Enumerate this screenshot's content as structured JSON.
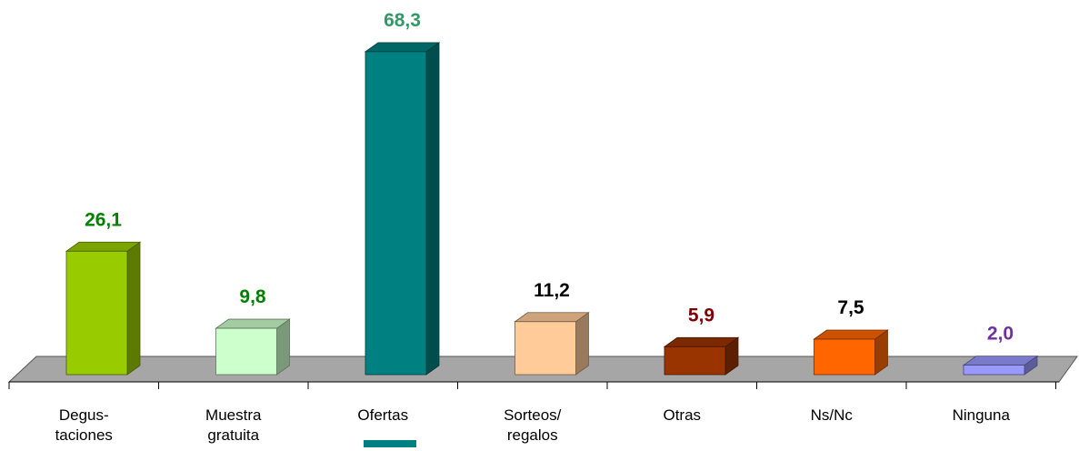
{
  "chart_data": {
    "type": "bar3d",
    "categories": [
      "Degus-\ntaciones",
      "Muestra\ngratuita",
      "Ofertas",
      "Sorteos/\nregalos",
      "Otras",
      "Ns/Nc",
      "Ninguna"
    ],
    "values": [
      26.1,
      9.8,
      68.3,
      11.2,
      5.9,
      7.5,
      2.0
    ],
    "value_labels": [
      "26,1",
      "9,8",
      "68,3",
      "11,2",
      "5,9",
      "7,5",
      "2,0"
    ],
    "colors": [
      "#99cc00",
      "#ccffcc",
      "#008080",
      "#ffcc99",
      "#993300",
      "#ff6600",
      "#9999ff"
    ],
    "label_colors": [
      "#008000",
      "#008000",
      "#339966",
      "#000000",
      "#800000",
      "#000000",
      "#7030a0"
    ]
  }
}
